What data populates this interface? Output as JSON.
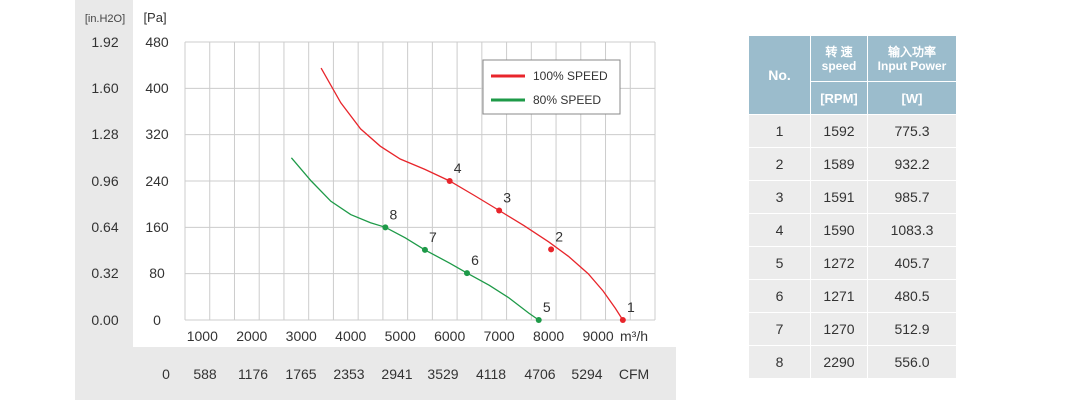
{
  "chart_data": {
    "type": "line",
    "y_axes": [
      {
        "label": "[in.H2O]",
        "ticks": [
          "1.92",
          "1.60",
          "1.28",
          "0.96",
          "0.64",
          "0.32",
          "0.00"
        ]
      },
      {
        "label": "[Pa]",
        "ticks": [
          "480",
          "400",
          "320",
          "240",
          "160",
          "80",
          "0"
        ],
        "ylim": [
          0,
          480
        ]
      }
    ],
    "x_axes": [
      {
        "unit": "m³/h",
        "ticks": [
          "1000",
          "2000",
          "3000",
          "4000",
          "5000",
          "6000",
          "7000",
          "8000",
          "9000"
        ],
        "xlim": [
          650,
          10150
        ]
      },
      {
        "unit": "CFM",
        "ticks": [
          "0",
          "588",
          "1176",
          "1765",
          "2353",
          "2941",
          "3529",
          "4118",
          "4706",
          "5294"
        ]
      }
    ],
    "grid": true,
    "legend": "top-right",
    "series": [
      {
        "name": "100% SPEED",
        "color": "#e8252b",
        "curve": [
          [
            3400,
            435
          ],
          [
            3800,
            375
          ],
          [
            4200,
            330
          ],
          [
            4600,
            300
          ],
          [
            5000,
            278
          ],
          [
            5500,
            260
          ],
          [
            6000,
            240
          ],
          [
            6500,
            215
          ],
          [
            7000,
            189
          ],
          [
            7500,
            163
          ],
          [
            8000,
            135
          ],
          [
            8400,
            110
          ],
          [
            8800,
            80
          ],
          [
            9100,
            50
          ],
          [
            9350,
            20
          ],
          [
            9500,
            0
          ]
        ],
        "points": [
          {
            "label": "1",
            "x": 9500,
            "y": 0
          },
          {
            "label": "2",
            "x": 8050,
            "y": 122
          },
          {
            "label": "3",
            "x": 7000,
            "y": 189
          },
          {
            "label": "4",
            "x": 6000,
            "y": 240
          }
        ]
      },
      {
        "name": "80% SPEED",
        "color": "#1e9a48",
        "curve": [
          [
            2800,
            280
          ],
          [
            3200,
            240
          ],
          [
            3600,
            205
          ],
          [
            4000,
            182
          ],
          [
            4400,
            168
          ],
          [
            4700,
            160
          ],
          [
            5100,
            142
          ],
          [
            5500,
            121
          ],
          [
            6000,
            98
          ],
          [
            6350,
            81
          ],
          [
            6800,
            60
          ],
          [
            7200,
            38
          ],
          [
            7600,
            12
          ],
          [
            7800,
            0
          ]
        ],
        "points": [
          {
            "label": "5",
            "x": 7800,
            "y": 0
          },
          {
            "label": "6",
            "x": 6350,
            "y": 81
          },
          {
            "label": "7",
            "x": 5500,
            "y": 121
          },
          {
            "label": "8",
            "x": 4700,
            "y": 160
          }
        ]
      }
    ]
  },
  "table": {
    "header_no": "No.",
    "header_speed_cn": "转 速",
    "header_speed_en": "speed",
    "header_power_cn": "输入功率",
    "header_power_en": "Input Power",
    "unit_speed": "[RPM]",
    "unit_power": "[W]",
    "rows": [
      {
        "no": "1",
        "rpm": "1592",
        "power": "775.3"
      },
      {
        "no": "2",
        "rpm": "1589",
        "power": "932.2"
      },
      {
        "no": "3",
        "rpm": "1591",
        "power": "985.7"
      },
      {
        "no": "4",
        "rpm": "1590",
        "power": "1083.3"
      },
      {
        "no": "5",
        "rpm": "1272",
        "power": "405.7"
      },
      {
        "no": "6",
        "rpm": "1271",
        "power": "480.5"
      },
      {
        "no": "7",
        "rpm": "1270",
        "power": "512.9"
      },
      {
        "no": "8",
        "rpm": "2290",
        "power": "556.0"
      }
    ]
  }
}
